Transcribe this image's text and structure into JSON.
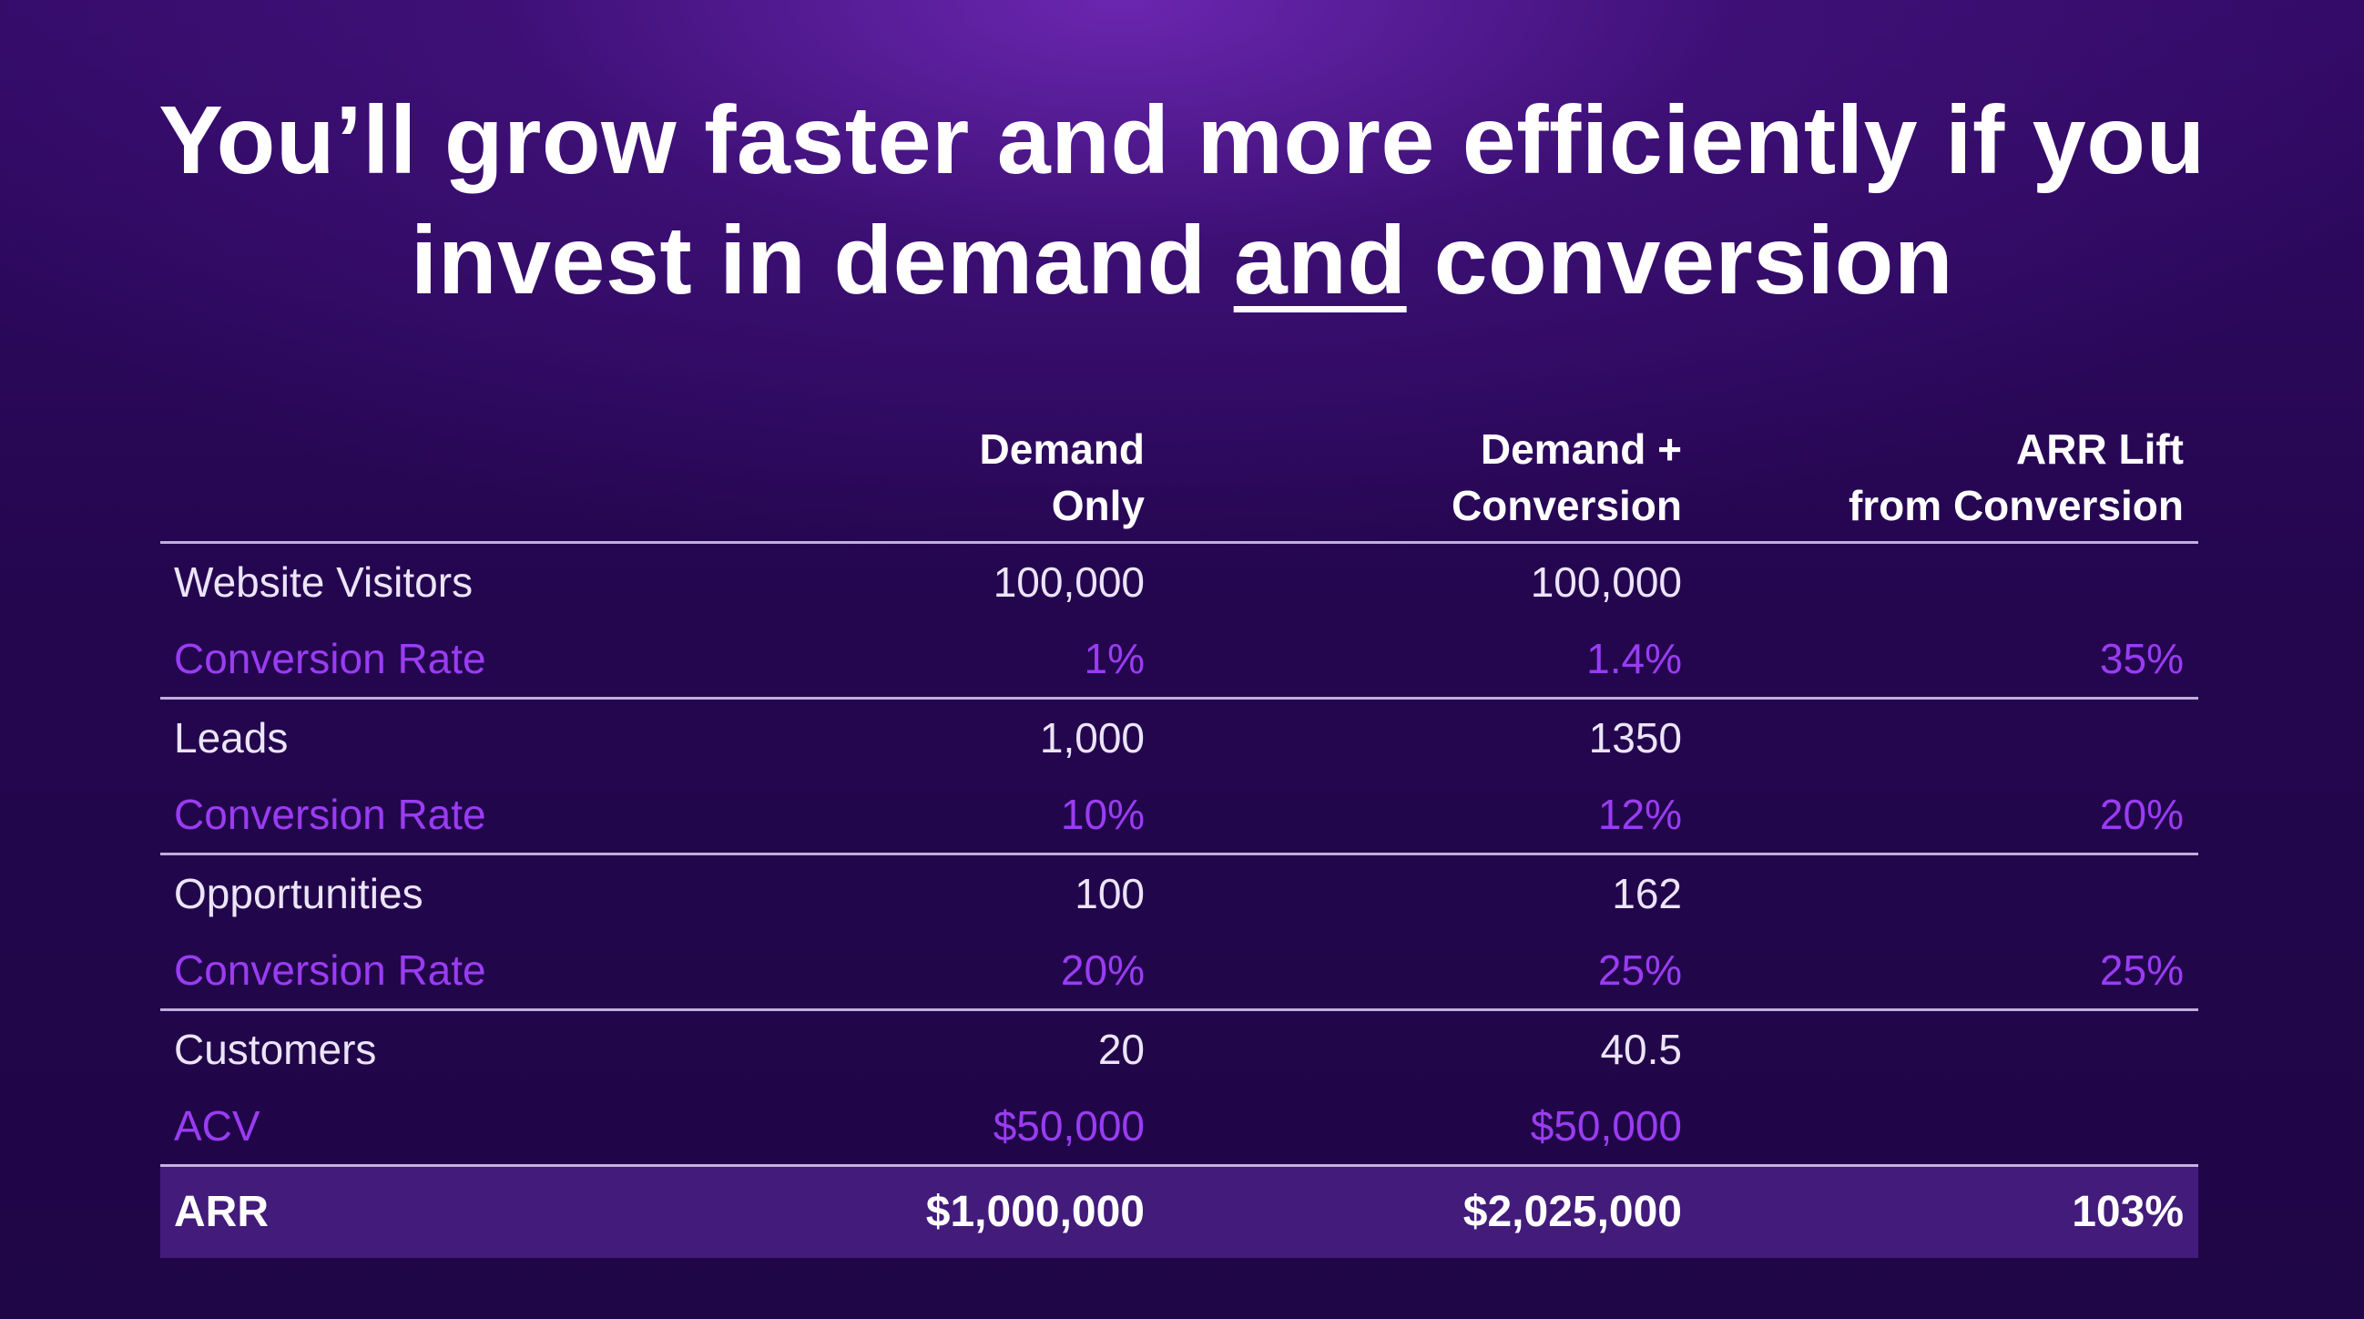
{
  "title": {
    "line1": "You’ll grow faster and more efficiently if you",
    "line2_before": "invest in demand ",
    "line2_underlined": "and",
    "line2_after": " conversion"
  },
  "table": {
    "headers": {
      "demand_only": [
        "Demand",
        "Only"
      ],
      "demand_conversion": [
        "Demand +",
        "Conversion"
      ],
      "arr_lift": [
        "ARR Lift",
        "from Conversion"
      ]
    },
    "groups": [
      {
        "metric": {
          "label": "Website Visitors",
          "demand_only": "100,000",
          "demand_conversion": "100,000",
          "lift": ""
        },
        "rate": {
          "label": "Conversion Rate",
          "demand_only": "1%",
          "demand_conversion": "1.4%",
          "lift": "35%"
        }
      },
      {
        "metric": {
          "label": "Leads",
          "demand_only": "1,000",
          "demand_conversion": "1350",
          "lift": ""
        },
        "rate": {
          "label": "Conversion Rate",
          "demand_only": "10%",
          "demand_conversion": "12%",
          "lift": "20%"
        }
      },
      {
        "metric": {
          "label": "Opportunities",
          "demand_only": "100",
          "demand_conversion": "162",
          "lift": ""
        },
        "rate": {
          "label": "Conversion Rate",
          "demand_only": "20%",
          "demand_conversion": "25%",
          "lift": "25%"
        }
      },
      {
        "metric": {
          "label": "Customers",
          "demand_only": "20",
          "demand_conversion": "40.5",
          "lift": ""
        },
        "rate": {
          "label": "ACV",
          "demand_only": "$50,000",
          "demand_conversion": "$50,000",
          "lift": ""
        }
      }
    ],
    "arr": {
      "label": "ARR",
      "demand_only": "$1,000,000",
      "demand_conversion": "$2,025,000",
      "lift": "103%"
    }
  },
  "colors": {
    "accent_purple": "#9a3cf2",
    "text_white": "#ece4f8",
    "background": "#24064f"
  }
}
